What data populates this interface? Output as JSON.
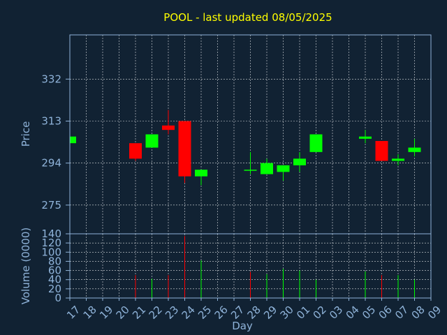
{
  "title": "POOL - last updated 08/05/2025",
  "chart_data": [
    {
      "type": "candlestick",
      "ylabel": "Price",
      "ylim": [
        262,
        352
      ],
      "yticks": [
        275,
        294,
        313,
        332
      ],
      "grid": true,
      "colors": {
        "up": "#00ff00",
        "down": "#ff0000",
        "neutral": "#00ff00"
      },
      "days": [
        "17",
        "18",
        "19",
        "20",
        "21",
        "22",
        "23",
        "24",
        "25",
        "26",
        "27",
        "28",
        "29",
        "30",
        "01",
        "02",
        "03",
        "04",
        "05",
        "06",
        "07",
        "08",
        "09"
      ],
      "candles": [
        {
          "day": "17",
          "open": 303,
          "high": 306,
          "low": 303,
          "close": 306
        },
        {
          "day": "21",
          "open": 303,
          "high": 303,
          "low": 295,
          "close": 296
        },
        {
          "day": "22",
          "open": 301,
          "high": 307,
          "low": 301,
          "close": 307
        },
        {
          "day": "23",
          "open": 311,
          "high": 318,
          "low": 307,
          "close": 309
        },
        {
          "day": "24",
          "open": 313,
          "high": 313,
          "low": 285,
          "close": 288
        },
        {
          "day": "25",
          "open": 288,
          "high": 291,
          "low": 284,
          "close": 291
        },
        {
          "day": "28",
          "open": 291,
          "high": 299,
          "low": 289,
          "close": 291
        },
        {
          "day": "29",
          "open": 289,
          "high": 296,
          "low": 289,
          "close": 294
        },
        {
          "day": "30",
          "open": 290,
          "high": 293,
          "low": 286,
          "close": 293
        },
        {
          "day": "01",
          "open": 293,
          "high": 299,
          "low": 290,
          "close": 296
        },
        {
          "day": "02",
          "open": 299,
          "high": 307,
          "low": 299,
          "close": 307
        },
        {
          "day": "05",
          "open": 305,
          "high": 309,
          "low": 303,
          "close": 306
        },
        {
          "day": "06",
          "open": 304,
          "high": 304,
          "low": 295,
          "close": 295
        },
        {
          "day": "07",
          "open": 295,
          "high": 298,
          "low": 293,
          "close": 296
        },
        {
          "day": "08",
          "open": 299,
          "high": 305,
          "low": 297,
          "close": 301
        }
      ]
    },
    {
      "type": "bar",
      "ylabel": "Volume (0000)",
      "xlabel": "Day",
      "ylim": [
        0,
        140
      ],
      "yticks": [
        0,
        20,
        40,
        60,
        80,
        100,
        120,
        140
      ],
      "grid": true,
      "volumes": [
        {
          "day": "21",
          "value": 50,
          "color": "#ff0000"
        },
        {
          "day": "22",
          "value": 42,
          "color": "#00ff00"
        },
        {
          "day": "23",
          "value": 50,
          "color": "#ff0000"
        },
        {
          "day": "24",
          "value": 135,
          "color": "#ff0000"
        },
        {
          "day": "25",
          "value": 82,
          "color": "#00ff00"
        },
        {
          "day": "28",
          "value": 57,
          "color": "#ff0000"
        },
        {
          "day": "29",
          "value": 52,
          "color": "#00ff00"
        },
        {
          "day": "30",
          "value": 64,
          "color": "#00ff00"
        },
        {
          "day": "01",
          "value": 60,
          "color": "#00ff00"
        },
        {
          "day": "02",
          "value": 40,
          "color": "#00ff00"
        },
        {
          "day": "05",
          "value": 58,
          "color": "#00ff00"
        },
        {
          "day": "06",
          "value": 50,
          "color": "#ff0000"
        },
        {
          "day": "07",
          "value": 50,
          "color": "#00ff00"
        },
        {
          "day": "08",
          "value": 40,
          "color": "#00ff00"
        }
      ]
    }
  ]
}
